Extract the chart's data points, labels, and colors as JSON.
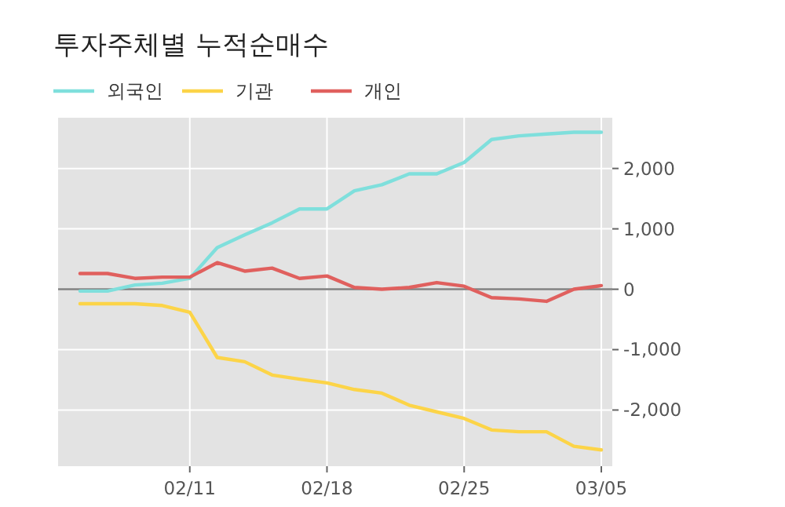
{
  "chart_data": {
    "type": "line",
    "title": "투자주체별 누적순매수",
    "categories": [
      null,
      null,
      null,
      null,
      "02/11",
      null,
      null,
      null,
      null,
      "02/18",
      null,
      null,
      null,
      null,
      "02/25",
      null,
      null,
      null,
      null,
      "03/05"
    ],
    "series": [
      {
        "name": "외국인",
        "color": "#7fdfdc",
        "values": [
          -30,
          -30,
          70,
          100,
          180,
          690,
          900,
          1100,
          1330,
          1330,
          1630,
          1730,
          1910,
          1910,
          2100,
          2480,
          2540,
          2570,
          2600,
          2600
        ]
      },
      {
        "name": "기관",
        "color": "#fcd448",
        "values": [
          -240,
          -240,
          -240,
          -270,
          -380,
          -1130,
          -1200,
          -1420,
          -1490,
          -1550,
          -1660,
          -1720,
          -1920,
          -2030,
          -2140,
          -2330,
          -2360,
          -2360,
          -2600,
          -2660
        ]
      },
      {
        "name": "개인",
        "color": "#e0605e",
        "values": [
          260,
          260,
          180,
          200,
          200,
          440,
          300,
          350,
          180,
          220,
          30,
          0,
          30,
          110,
          50,
          -140,
          -160,
          -200,
          0,
          60
        ]
      }
    ],
    "ylim": [
      -2930,
      2840
    ],
    "yticks": [
      {
        "value": 2000,
        "label": "2,000"
      },
      {
        "value": 1000,
        "label": "1,000"
      },
      0,
      {
        "value": -1000,
        "label": "-1,000"
      },
      {
        "value": -2000,
        "label": "-2,000"
      }
    ],
    "grid": true,
    "legend": "top left",
    "marker": "none",
    "line_style": "solid",
    "ref_lines": [
      {
        "axis": "y",
        "value": 0,
        "color": "#808080"
      }
    ]
  }
}
